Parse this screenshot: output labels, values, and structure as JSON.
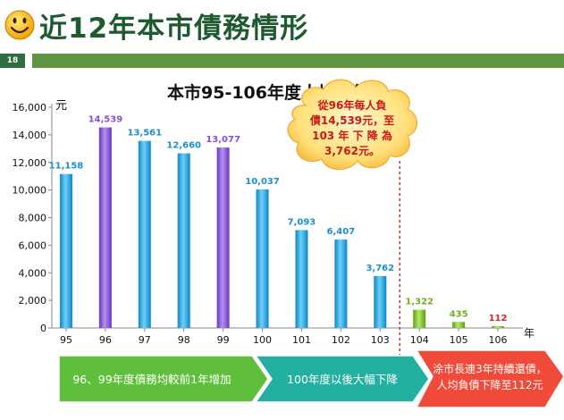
{
  "header": {
    "title": "近12年本市債務情形",
    "page_number": "18",
    "icon": "smiley-face-icon"
  },
  "chart_data": {
    "type": "bar",
    "title": "本市95-106年度人均負債",
    "ylabel": "元",
    "xlabel": "年",
    "ylim": [
      0,
      16000
    ],
    "yticks": [
      "0",
      "2,000",
      "4,000",
      "6,000",
      "8,000",
      "10,000",
      "12,000",
      "14,000",
      "16,000"
    ],
    "categories": [
      "95",
      "96",
      "97",
      "98",
      "99",
      "100",
      "101",
      "102",
      "103",
      "104",
      "105",
      "106"
    ],
    "values": [
      11158,
      14539,
      13561,
      12660,
      13077,
      10037,
      7093,
      6407,
      3762,
      1322,
      435,
      112
    ],
    "value_labels": [
      "11,158",
      "14,539",
      "13,561",
      "12,660",
      "13,077",
      "10,037",
      "7,093",
      "6,407",
      "3,762",
      "1,322",
      "435",
      "112"
    ],
    "bar_colors": [
      "#1aa0df",
      "#8a4fd8",
      "#1aa0df",
      "#1aa0df",
      "#8a4fd8",
      "#1aa0df",
      "#1aa0df",
      "#1aa0df",
      "#1aa0df",
      "#7fbf2a",
      "#7fbf2a",
      "#7fbf2a"
    ],
    "label_colors": [
      "#1a8fd0",
      "#8a4fd8",
      "#1a8fd0",
      "#1a8fd0",
      "#8a4fd8",
      "#1a8fd0",
      "#1a8fd0",
      "#1a8fd0",
      "#1a8fd0",
      "#6fae25",
      "#6fae25",
      "#d42a2a"
    ],
    "grid": false,
    "callout": {
      "lines": [
        "從96年每人負",
        "債14,539元，至",
        "103 年 下 降 為",
        "3,762元。"
      ]
    }
  },
  "banners": [
    {
      "text": "96、99年度債務均較前1年增加",
      "color": "#5fbf3c"
    },
    {
      "text": "100年度以後大幅下降",
      "color": "#23b0a0"
    },
    {
      "lines": [
        "涂市長連3年持續還債，",
        "人均負債下降至112元"
      ],
      "color": "#f04a3a"
    }
  ]
}
